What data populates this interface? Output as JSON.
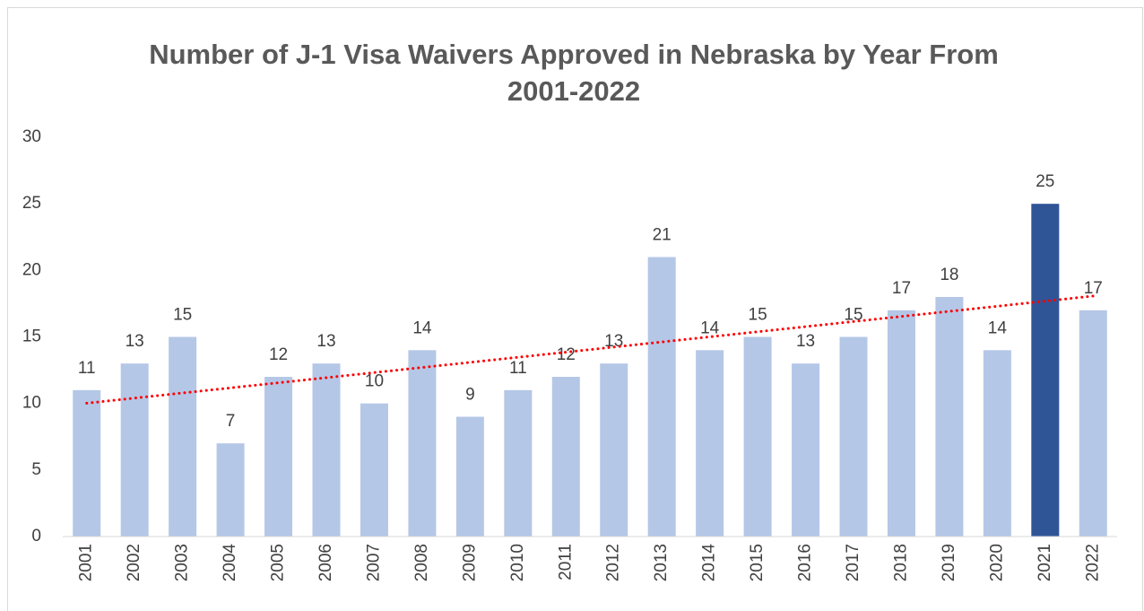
{
  "chart_data": {
    "type": "bar",
    "title": "Number of J-1 Visa Waivers Approved in Nebraska by Year From 2001-2022",
    "categories": [
      "2001",
      "2002",
      "2003",
      "2004",
      "2005",
      "2006",
      "2007",
      "2008",
      "2009",
      "2010",
      "2011",
      "2012",
      "2013",
      "2014",
      "2015",
      "2016",
      "2017",
      "2018",
      "2019",
      "2020",
      "2021",
      "2022"
    ],
    "values": [
      11,
      13,
      15,
      7,
      12,
      13,
      10,
      14,
      9,
      11,
      12,
      13,
      21,
      14,
      15,
      13,
      15,
      17,
      18,
      14,
      25,
      17
    ],
    "colors": [
      "#b4c7e7",
      "#b4c7e7",
      "#b4c7e7",
      "#b4c7e7",
      "#b4c7e7",
      "#b4c7e7",
      "#b4c7e7",
      "#b4c7e7",
      "#b4c7e7",
      "#b4c7e7",
      "#b4c7e7",
      "#b4c7e7",
      "#b4c7e7",
      "#b4c7e7",
      "#b4c7e7",
      "#b4c7e7",
      "#b4c7e7",
      "#b4c7e7",
      "#b4c7e7",
      "#b4c7e7",
      "#2f5597",
      "#b4c7e7"
    ],
    "ylim": [
      0,
      30
    ],
    "yticks": [
      0,
      5,
      10,
      15,
      20,
      25,
      30
    ],
    "grid": false,
    "trendline": {
      "type": "linear",
      "color": "#ff0000"
    }
  }
}
